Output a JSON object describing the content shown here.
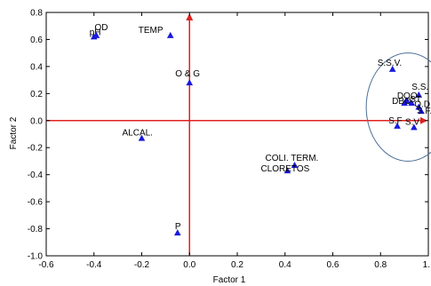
{
  "chart_data": {
    "type": "scatter",
    "title": "",
    "xlabel": "Factor 1",
    "ylabel": "Factor 2",
    "xlim": [
      -0.6,
      1.0
    ],
    "ylim": [
      -1.0,
      0.8
    ],
    "x_ticks": [
      "-0.6",
      "-0.4",
      "-0.2",
      "0.0",
      "0.2",
      "0.4",
      "0.6",
      "0.8",
      "1."
    ],
    "y_ticks": [
      "0.8",
      "0.6",
      "0.4",
      "0.2",
      "0.0",
      "-0.2",
      "-0.4",
      "-0.6",
      "-0.8",
      "-1.0"
    ],
    "grid": false,
    "marker_color": "#1a1adc",
    "reference_line_color": "#e02020",
    "ellipse_color": "#4a6e96",
    "points": [
      {
        "label": "pH",
        "x": -0.4,
        "y": 0.62
      },
      {
        "label": "OD",
        "x": -0.39,
        "y": 0.63
      },
      {
        "label": "TEMP",
        "x": -0.08,
        "y": 0.63
      },
      {
        "label": "O & G",
        "x": 0.0,
        "y": 0.28
      },
      {
        "label": "ALCAL.",
        "x": -0.2,
        "y": -0.13
      },
      {
        "label": "P",
        "x": -0.05,
        "y": -0.83
      },
      {
        "label": "COLI. TERM.",
        "x": 0.44,
        "y": -0.33
      },
      {
        "label": "CLORETOS",
        "x": 0.41,
        "y": -0.37
      },
      {
        "label": "S.S.V.",
        "x": 0.85,
        "y": 0.38
      },
      {
        "label": "S.S.",
        "x": 0.96,
        "y": 0.19
      },
      {
        "label": "DQO",
        "x": 0.91,
        "y": 0.15
      },
      {
        "label": "DBO",
        "x": 0.9,
        "y": 0.13
      },
      {
        "label": "ST",
        "x": 0.93,
        "y": 0.13
      },
      {
        "label": "O.D.",
        "x": 0.96,
        "y": 0.1
      },
      {
        "label": "S.F.",
        "x": 0.97,
        "y": 0.07
      },
      {
        "label": "S.F",
        "x": 0.87,
        "y": -0.04
      },
      {
        "label": "S.V",
        "x": 0.94,
        "y": -0.05
      }
    ],
    "ellipse": {
      "cx": 0.915,
      "cy": 0.1,
      "rx": 0.175,
      "ry": 0.4
    }
  }
}
